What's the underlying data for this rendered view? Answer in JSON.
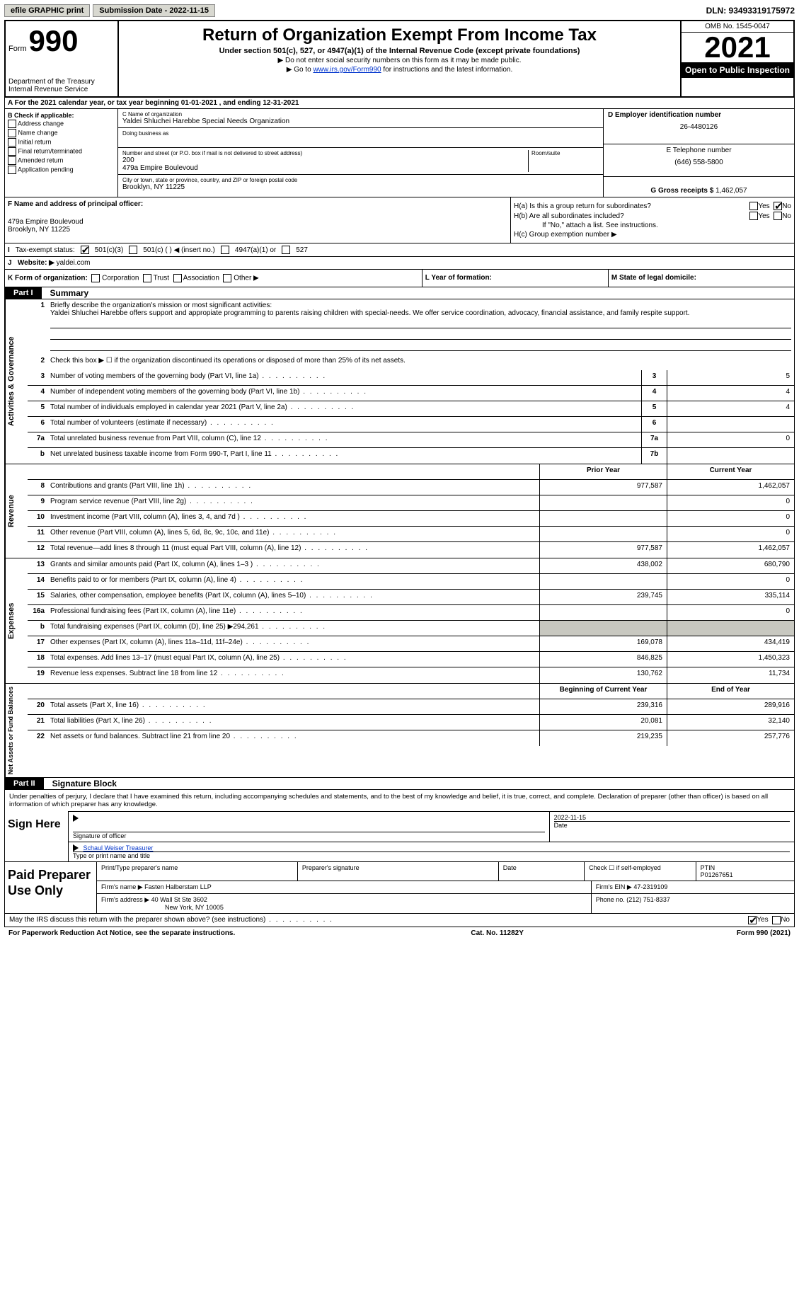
{
  "topbar": {
    "efile": "efile GRAPHIC print",
    "submission_label": "Submission Date - 2022-11-15",
    "dln_label": "DLN: 93493319175972"
  },
  "header": {
    "form_word": "Form",
    "form_num": "990",
    "dept": "Department of the Treasury",
    "irs": "Internal Revenue Service",
    "title": "Return of Organization Exempt From Income Tax",
    "sub": "Under section 501(c), 527, or 4947(a)(1) of the Internal Revenue Code (except private foundations)",
    "note1": "▶ Do not enter social security numbers on this form as it may be made public.",
    "note2_pre": "▶ Go to ",
    "note2_link": "www.irs.gov/Form990",
    "note2_post": " for instructions and the latest information.",
    "omb": "OMB No. 1545-0047",
    "year": "2021",
    "inspect": "Open to Public Inspection"
  },
  "row_a": "A For the 2021 calendar year, or tax year beginning 01-01-2021   , and ending 12-31-2021",
  "col_b": {
    "title": "B Check if applicable:",
    "opts": [
      "Address change",
      "Name change",
      "Initial return",
      "Final return/terminated",
      "Amended return",
      "Application pending"
    ]
  },
  "col_c": {
    "name_label": "C Name of organization",
    "name": "Yaldei Shluchei Harebbe Special Needs Organization",
    "dba_label": "Doing business as",
    "street_label": "Number and street (or P.O. box if mail is not delivered to street address)",
    "room_label": "Room/suite",
    "street": "479a Empire Boulevoud",
    "city_label": "City or town, state or province, country, and ZIP or foreign postal code",
    "city": "Brooklyn, NY  11225"
  },
  "col_d": {
    "ein_label": "D Employer identification number",
    "ein": "26-4480126",
    "phone_label": "E Telephone number",
    "phone": "(646) 558-5800",
    "gross_label": "G Gross receipts $",
    "gross": "1,462,057"
  },
  "col_f": {
    "label": "F  Name and address of principal officer:",
    "addr1": "479a Empire Boulevoud",
    "addr2": "Brooklyn, NY  11225"
  },
  "col_h": {
    "ha": "H(a)  Is this a group return for subordinates?",
    "hb": "H(b)  Are all subordinates included?",
    "hb_note": "If \"No,\" attach a list. See instructions.",
    "hc": "H(c)  Group exemption number ▶",
    "yes": "Yes",
    "no": "No"
  },
  "row_i": {
    "label": "Tax-exempt status:",
    "o1": "501(c)(3)",
    "o2": "501(c) (  ) ◀ (insert no.)",
    "o3": "4947(a)(1) or",
    "o4": "527"
  },
  "row_j": {
    "label": "Website: ▶",
    "val": "yaldei.com"
  },
  "row_k": {
    "k": "K Form of organization:",
    "opts": [
      "Corporation",
      "Trust",
      "Association",
      "Other ▶"
    ],
    "l": "L Year of formation:",
    "m": "M State of legal domicile:"
  },
  "part1": {
    "label": "Part I",
    "title": "Summary"
  },
  "summary": {
    "q1": "Briefly describe the organization's mission or most significant activities:",
    "mission": "Yaldei Shluchei Harebbe offers support and appropiate programming to parents raising children with special-needs. We offer service coordination, advocacy, financial assistance, and family respite support.",
    "q2": "Check this box ▶ ☐  if the organization discontinued its operations or disposed of more than 25% of its net assets.",
    "rows": [
      {
        "n": "3",
        "t": "Number of voting members of the governing body (Part VI, line 1a)",
        "box": "3",
        "v": "5"
      },
      {
        "n": "4",
        "t": "Number of independent voting members of the governing body (Part VI, line 1b)",
        "box": "4",
        "v": "4"
      },
      {
        "n": "5",
        "t": "Total number of individuals employed in calendar year 2021 (Part V, line 2a)",
        "box": "5",
        "v": "4"
      },
      {
        "n": "6",
        "t": "Total number of volunteers (estimate if necessary)",
        "box": "6",
        "v": ""
      },
      {
        "n": "7a",
        "t": "Total unrelated business revenue from Part VIII, column (C), line 12",
        "box": "7a",
        "v": "0"
      },
      {
        "n": "b",
        "t": "Net unrelated business taxable income from Form 990-T, Part I, line 11",
        "box": "7b",
        "v": ""
      }
    ],
    "col_prior": "Prior Year",
    "col_current": "Current Year"
  },
  "revenue": [
    {
      "n": "8",
      "t": "Contributions and grants (Part VIII, line 1h)",
      "p": "977,587",
      "c": "1,462,057"
    },
    {
      "n": "9",
      "t": "Program service revenue (Part VIII, line 2g)",
      "p": "",
      "c": "0"
    },
    {
      "n": "10",
      "t": "Investment income (Part VIII, column (A), lines 3, 4, and 7d )",
      "p": "",
      "c": "0"
    },
    {
      "n": "11",
      "t": "Other revenue (Part VIII, column (A), lines 5, 6d, 8c, 9c, 10c, and 11e)",
      "p": "",
      "c": "0"
    },
    {
      "n": "12",
      "t": "Total revenue—add lines 8 through 11 (must equal Part VIII, column (A), line 12)",
      "p": "977,587",
      "c": "1,462,057"
    }
  ],
  "expenses": [
    {
      "n": "13",
      "t": "Grants and similar amounts paid (Part IX, column (A), lines 1–3 )",
      "p": "438,002",
      "c": "680,790"
    },
    {
      "n": "14",
      "t": "Benefits paid to or for members (Part IX, column (A), line 4)",
      "p": "",
      "c": "0"
    },
    {
      "n": "15",
      "t": "Salaries, other compensation, employee benefits (Part IX, column (A), lines 5–10)",
      "p": "239,745",
      "c": "335,114"
    },
    {
      "n": "16a",
      "t": "Professional fundraising fees (Part IX, column (A), line 11e)",
      "p": "",
      "c": "0"
    },
    {
      "n": "b",
      "t": "Total fundraising expenses (Part IX, column (D), line 25) ▶294,261",
      "p": "shade",
      "c": "shade"
    },
    {
      "n": "17",
      "t": "Other expenses (Part IX, column (A), lines 11a–11d, 11f–24e)",
      "p": "169,078",
      "c": "434,419"
    },
    {
      "n": "18",
      "t": "Total expenses. Add lines 13–17 (must equal Part IX, column (A), line 25)",
      "p": "846,825",
      "c": "1,450,323"
    },
    {
      "n": "19",
      "t": "Revenue less expenses. Subtract line 18 from line 12",
      "p": "130,762",
      "c": "11,734"
    }
  ],
  "netassets": {
    "col_begin": "Beginning of Current Year",
    "col_end": "End of Year",
    "rows": [
      {
        "n": "20",
        "t": "Total assets (Part X, line 16)",
        "p": "239,316",
        "c": "289,916"
      },
      {
        "n": "21",
        "t": "Total liabilities (Part X, line 26)",
        "p": "20,081",
        "c": "32,140"
      },
      {
        "n": "22",
        "t": "Net assets or fund balances. Subtract line 21 from line 20",
        "p": "219,235",
        "c": "257,776"
      }
    ]
  },
  "part2": {
    "label": "Part II",
    "title": "Signature Block"
  },
  "sig": {
    "decl": "Under penalties of perjury, I declare that I have examined this return, including accompanying schedules and statements, and to the best of my knowledge and belief, it is true, correct, and complete. Declaration of preparer (other than officer) is based on all information of which preparer has any knowledge.",
    "sign_here": "Sign Here",
    "sig_officer": "Signature of officer",
    "date": "Date",
    "sig_date": "2022-11-15",
    "name_title": "Schaul Weiser  Treasurer",
    "type_print": "Type or print name and title"
  },
  "prep": {
    "title": "Paid Preparer Use Only",
    "print_name": "Print/Type preparer's name",
    "prep_sig": "Preparer's signature",
    "date": "Date",
    "check_se": "Check ☐ if self-employed",
    "ptin_label": "PTIN",
    "ptin": "P01267651",
    "firm_name_label": "Firm's name   ▶",
    "firm_name": "Fasten Halberstam LLP",
    "firm_ein_label": "Firm's EIN ▶",
    "firm_ein": "47-2319109",
    "firm_addr_label": "Firm's address ▶",
    "firm_addr1": "40 Wall St Ste 3602",
    "firm_addr2": "New York, NY  10005",
    "phone_label": "Phone no.",
    "phone": "(212) 751-8337"
  },
  "footer": {
    "discuss": "May the IRS discuss this return with the preparer shown above? (see instructions)",
    "yes": "Yes",
    "no": "No",
    "pra": "For Paperwork Reduction Act Notice, see the separate instructions.",
    "cat": "Cat. No. 11282Y",
    "form": "Form 990 (2021)"
  },
  "vtabs": {
    "gov": "Activities & Governance",
    "rev": "Revenue",
    "exp": "Expenses",
    "net": "Net Assets or Fund Balances"
  }
}
